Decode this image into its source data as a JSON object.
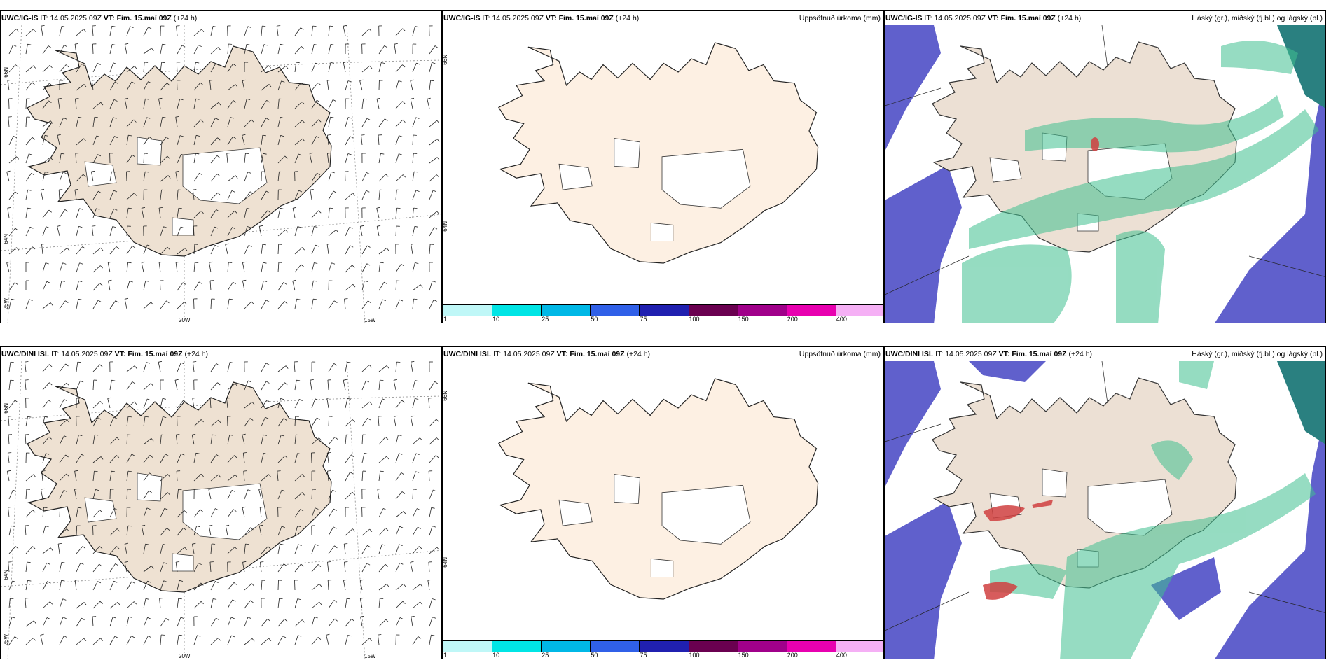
{
  "rows": [
    {
      "model": "UWC/IG-IS",
      "it_label": "IT:",
      "it_value": "14.05.2025 09Z",
      "vt_label": "VT:",
      "vt_value": "Fim. 15.maí 09Z",
      "lead": "(+24 h)"
    },
    {
      "model": "UWC/DINI ISL",
      "it_label": "IT:",
      "it_value": "14.05.2025 09Z",
      "vt_label": "VT:",
      "vt_value": "Fim. 15.maí 09Z",
      "lead": "(+24 h)"
    }
  ],
  "precip_title": "Uppsöfnuð úrkoma (mm)",
  "cloud_title": "Háský (gr.), miðský (fj.bl.) og lágský (bl.)",
  "axis_labels": {
    "lat66": "66N",
    "lat64": "64N",
    "lon20": "20W",
    "lon15": "15W",
    "lon25": "25W"
  },
  "colorbar": {
    "ticks": [
      "1",
      "10",
      "25",
      "50",
      "75",
      "100",
      "150",
      "200",
      "400"
    ],
    "colors": [
      "#bff7f7",
      "#00e5e5",
      "#00b8e6",
      "#3060e8",
      "#2020b0",
      "#6a0050",
      "#a0008a",
      "#e800b0",
      "#f5b0f5"
    ]
  },
  "colors": {
    "land_wind": "#eee1d2",
    "land_precip": "#fdf0e3",
    "land_cloud": "#ece0d4",
    "sea_cloud": "#6060cc",
    "mid_cloud": "#40c090",
    "high_cloud": "#d04040"
  }
}
